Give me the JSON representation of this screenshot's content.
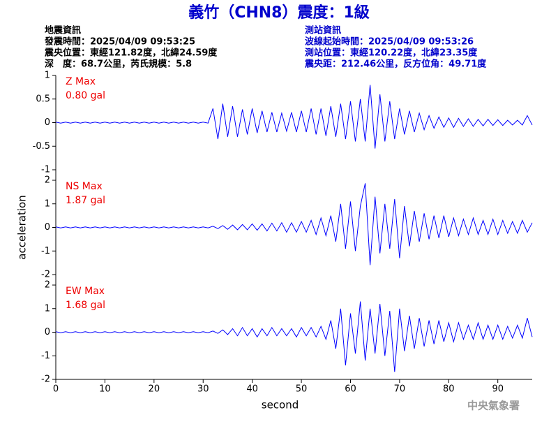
{
  "title": "義竹（CHN8）震度：1級",
  "info_left": [
    "地震資訊",
    "發震時間：2025/04/09 09:53:25",
    "震央位置：東經121.82度，北緯24.59度",
    "深　度：68.7公里，芮氏規模：5.8"
  ],
  "info_right": [
    "測站資訊",
    "波線起始時間：2025/04/09 09:53:26",
    "測站位置：東經120.22度，北緯23.35度",
    "震央距：212.46公里，反方位角：49.71度"
  ],
  "footer": "中央氣象署",
  "chart_data": [
    {
      "type": "line",
      "annotation": [
        "Z Max",
        "0.80 gal"
      ],
      "color": "#0000ff",
      "x": [
        0,
        1,
        2,
        3,
        4,
        5,
        6,
        7,
        8,
        9,
        10,
        11,
        12,
        13,
        14,
        15,
        16,
        17,
        18,
        19,
        20,
        21,
        22,
        23,
        24,
        25,
        26,
        27,
        28,
        29,
        30,
        31,
        32,
        33,
        34,
        35,
        36,
        37,
        38,
        39,
        40,
        41,
        42,
        43,
        44,
        45,
        46,
        47,
        48,
        49,
        50,
        51,
        52,
        53,
        54,
        55,
        56,
        57,
        58,
        59,
        60,
        61,
        62,
        63,
        64,
        65,
        66,
        67,
        68,
        69,
        70,
        71,
        72,
        73,
        74,
        75,
        76,
        77,
        78,
        79,
        80,
        81,
        82,
        83,
        84,
        85,
        86,
        87,
        88,
        89,
        90,
        91,
        92,
        93,
        94,
        95,
        96,
        97
      ],
      "values": [
        0.01,
        -0.01,
        0.01,
        -0.01,
        0.01,
        -0.01,
        0.01,
        -0.01,
        0.01,
        -0.01,
        0.01,
        -0.01,
        0.01,
        -0.01,
        0.01,
        -0.01,
        0.01,
        -0.01,
        0.01,
        -0.01,
        0.01,
        -0.01,
        0.01,
        -0.01,
        0.01,
        -0.01,
        0.01,
        -0.01,
        0.01,
        -0.01,
        0.01,
        -0.01,
        0.3,
        -0.35,
        0.4,
        -0.3,
        0.35,
        -0.3,
        0.28,
        -0.25,
        0.3,
        -0.22,
        0.25,
        -0.2,
        0.22,
        -0.2,
        0.2,
        -0.18,
        0.22,
        -0.2,
        0.25,
        -0.2,
        0.3,
        -0.25,
        0.3,
        -0.28,
        0.35,
        -0.3,
        0.4,
        -0.35,
        0.45,
        -0.4,
        0.5,
        -0.4,
        0.8,
        -0.55,
        0.6,
        -0.4,
        0.45,
        -0.35,
        0.3,
        -0.25,
        0.25,
        -0.2,
        0.2,
        -0.15,
        0.15,
        -0.12,
        0.12,
        -0.1,
        0.1,
        -0.1,
        0.09,
        -0.08,
        0.08,
        -0.08,
        0.07,
        -0.07,
        0.07,
        -0.06,
        0.06,
        -0.06,
        0.05,
        -0.05,
        0.05,
        -0.05,
        0.15,
        -0.05
      ],
      "xlim": [
        0,
        97
      ],
      "ylim": [
        -1,
        1
      ],
      "yticks": [
        1,
        0.5,
        0,
        -0.5,
        -1
      ]
    },
    {
      "type": "line",
      "annotation": [
        "NS Max",
        "1.87 gal"
      ],
      "color": "#0000ff",
      "ylabel": "acceleration",
      "x": [
        0,
        1,
        2,
        3,
        4,
        5,
        6,
        7,
        8,
        9,
        10,
        11,
        12,
        13,
        14,
        15,
        16,
        17,
        18,
        19,
        20,
        21,
        22,
        23,
        24,
        25,
        26,
        27,
        28,
        29,
        30,
        31,
        32,
        33,
        34,
        35,
        36,
        37,
        38,
        39,
        40,
        41,
        42,
        43,
        44,
        45,
        46,
        47,
        48,
        49,
        50,
        51,
        52,
        53,
        54,
        55,
        56,
        57,
        58,
        59,
        60,
        61,
        62,
        63,
        64,
        65,
        66,
        67,
        68,
        69,
        70,
        71,
        72,
        73,
        74,
        75,
        76,
        77,
        78,
        79,
        80,
        81,
        82,
        83,
        84,
        85,
        86,
        87,
        88,
        89,
        90,
        91,
        92,
        93,
        94,
        95,
        96,
        97
      ],
      "values": [
        0.02,
        -0.02,
        0.02,
        -0.02,
        0.02,
        -0.02,
        0.02,
        -0.02,
        0.02,
        -0.02,
        0.02,
        -0.02,
        0.02,
        -0.02,
        0.02,
        -0.02,
        0.02,
        -0.02,
        0.02,
        -0.02,
        0.02,
        -0.02,
        0.02,
        -0.02,
        0.02,
        -0.02,
        0.02,
        -0.02,
        0.02,
        -0.02,
        0.02,
        -0.02,
        0.05,
        -0.05,
        0.08,
        -0.08,
        0.1,
        -0.1,
        0.12,
        -0.1,
        0.15,
        -0.12,
        0.15,
        -0.15,
        0.18,
        -0.15,
        0.2,
        -0.2,
        0.2,
        -0.2,
        0.25,
        -0.2,
        0.3,
        -0.3,
        0.4,
        -0.35,
        0.5,
        -0.6,
        1.0,
        -0.9,
        1.1,
        -1.0,
        0.9,
        1.87,
        -1.6,
        1.3,
        -1.1,
        1.0,
        -0.9,
        1.2,
        -1.3,
        0.9,
        -0.8,
        0.7,
        -0.6,
        0.6,
        -0.5,
        0.5,
        -0.45,
        0.5,
        -0.4,
        0.4,
        -0.35,
        0.35,
        -0.3,
        0.4,
        -0.3,
        0.3,
        -0.3,
        0.35,
        -0.3,
        0.3,
        -0.25,
        0.25,
        -0.25,
        0.3,
        -0.2,
        0.2
      ],
      "xlim": [
        0,
        97
      ],
      "ylim": [
        -2,
        2
      ],
      "yticks": [
        2,
        1,
        0,
        -1,
        -2
      ]
    },
    {
      "type": "line",
      "annotation": [
        "EW Max",
        "1.68 gal"
      ],
      "color": "#0000ff",
      "xlabel": "second",
      "x": [
        0,
        1,
        2,
        3,
        4,
        5,
        6,
        7,
        8,
        9,
        10,
        11,
        12,
        13,
        14,
        15,
        16,
        17,
        18,
        19,
        20,
        21,
        22,
        23,
        24,
        25,
        26,
        27,
        28,
        29,
        30,
        31,
        32,
        33,
        34,
        35,
        36,
        37,
        38,
        39,
        40,
        41,
        42,
        43,
        44,
        45,
        46,
        47,
        48,
        49,
        50,
        51,
        52,
        53,
        54,
        55,
        56,
        57,
        58,
        59,
        60,
        61,
        62,
        63,
        64,
        65,
        66,
        67,
        68,
        69,
        70,
        71,
        72,
        73,
        74,
        75,
        76,
        77,
        78,
        79,
        80,
        81,
        82,
        83,
        84,
        85,
        86,
        87,
        88,
        89,
        90,
        91,
        92,
        93,
        94,
        95,
        96,
        97
      ],
      "values": [
        0.02,
        -0.02,
        0.02,
        -0.02,
        0.02,
        -0.02,
        0.02,
        -0.02,
        0.02,
        -0.02,
        0.02,
        -0.02,
        0.02,
        -0.02,
        0.02,
        -0.02,
        0.02,
        -0.02,
        0.02,
        -0.02,
        0.02,
        -0.02,
        0.02,
        -0.02,
        0.02,
        -0.02,
        0.02,
        -0.02,
        0.02,
        -0.02,
        0.02,
        -0.02,
        0.05,
        -0.05,
        0.1,
        -0.1,
        0.15,
        -0.15,
        0.2,
        -0.15,
        0.15,
        -0.2,
        0.15,
        -0.15,
        0.2,
        -0.15,
        0.15,
        -0.15,
        0.15,
        -0.2,
        0.2,
        -0.15,
        0.2,
        -0.2,
        0.25,
        -0.3,
        0.5,
        -0.7,
        1.0,
        -1.4,
        0.8,
        -0.9,
        1.3,
        -1.2,
        1.0,
        -0.9,
        1.2,
        -1.0,
        0.9,
        -1.68,
        1.0,
        -0.8,
        0.7,
        -0.7,
        0.6,
        -0.6,
        0.5,
        -0.5,
        0.5,
        -0.4,
        0.4,
        -0.4,
        0.4,
        -0.3,
        0.3,
        -0.3,
        0.4,
        -0.3,
        0.3,
        -0.3,
        0.3,
        -0.3,
        0.25,
        -0.25,
        0.3,
        -0.25,
        0.6,
        -0.2
      ],
      "xlim": [
        0,
        97
      ],
      "ylim": [
        -2,
        2
      ],
      "yticks": [
        2,
        1,
        0,
        -1,
        -2
      ],
      "xticks": [
        0,
        10,
        20,
        30,
        40,
        50,
        60,
        70,
        80,
        90
      ]
    }
  ]
}
